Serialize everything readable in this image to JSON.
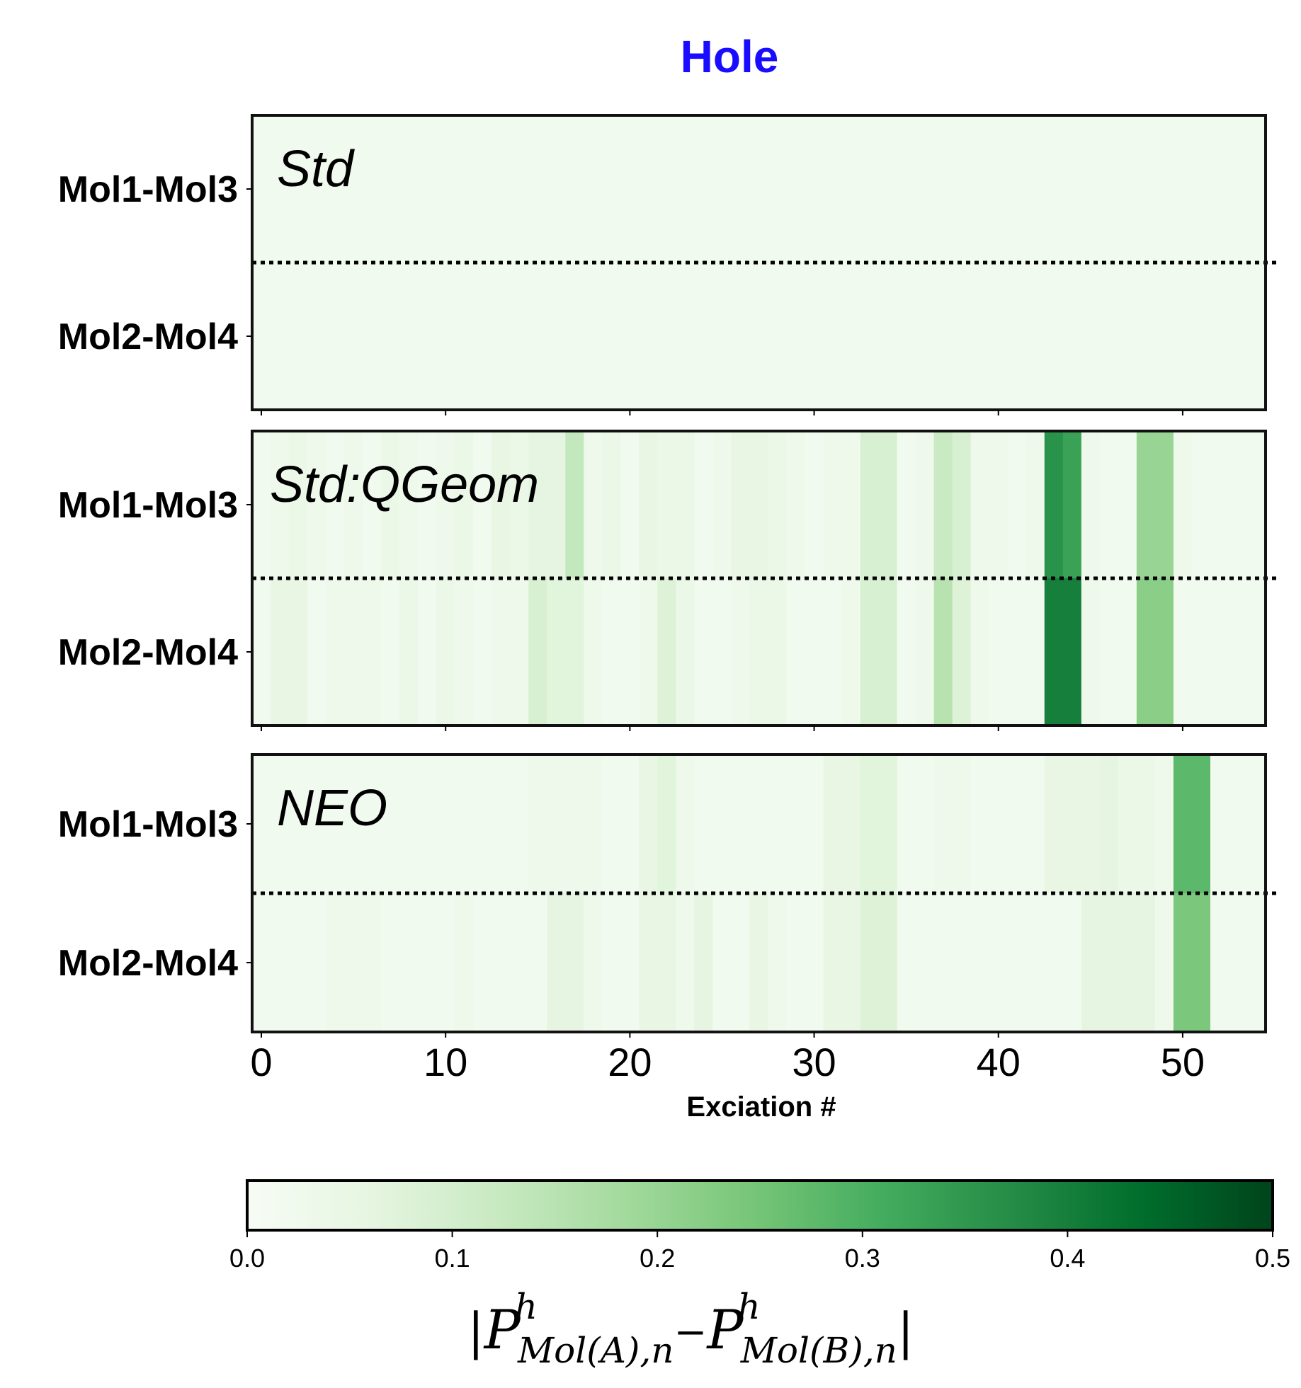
{
  "chart_data": {
    "type": "heatmap",
    "title": "Hole",
    "title_color": "#1a0dff",
    "xlabel": "Exciation #",
    "x_ticks": [
      0,
      10,
      20,
      30,
      40,
      50
    ],
    "x_range": [
      -0.5,
      54.5
    ],
    "colormap": "Greens",
    "colorbar": {
      "range": [
        0.0,
        0.5
      ],
      "ticks": [
        "0.0",
        "0.1",
        "0.2",
        "0.3",
        "0.4",
        "0.5"
      ],
      "label_main": "|P",
      "label_parts": {
        "sym1": "P",
        "sup1": "h",
        "sub1": "Mol(A),n",
        "minus": "−",
        "sym2": "P",
        "sup2": "h",
        "sub2": "Mol(B),n",
        "open": "|",
        "close": "|"
      }
    },
    "rows": [
      "Mol1-Mol3",
      "Mol2-Mol4"
    ],
    "panels": [
      {
        "label": "Std",
        "values": [
          [
            0.02,
            0.02,
            0.02,
            0.02,
            0.02,
            0.02,
            0.02,
            0.02,
            0.02,
            0.02,
            0.02,
            0.02,
            0.02,
            0.02,
            0.02,
            0.02,
            0.02,
            0.02,
            0.02,
            0.02,
            0.02,
            0.02,
            0.02,
            0.02,
            0.02,
            0.02,
            0.02,
            0.02,
            0.02,
            0.02,
            0.02,
            0.02,
            0.02,
            0.02,
            0.02,
            0.02,
            0.02,
            0.02,
            0.02,
            0.02,
            0.02,
            0.02,
            0.02,
            0.02,
            0.02,
            0.02,
            0.02,
            0.02,
            0.02,
            0.02,
            0.02,
            0.02,
            0.02,
            0.02,
            0.02
          ],
          [
            0.02,
            0.02,
            0.02,
            0.02,
            0.02,
            0.02,
            0.02,
            0.02,
            0.02,
            0.02,
            0.02,
            0.02,
            0.02,
            0.02,
            0.02,
            0.02,
            0.02,
            0.02,
            0.02,
            0.02,
            0.02,
            0.02,
            0.02,
            0.02,
            0.02,
            0.02,
            0.02,
            0.02,
            0.02,
            0.02,
            0.02,
            0.02,
            0.02,
            0.02,
            0.02,
            0.02,
            0.02,
            0.02,
            0.02,
            0.02,
            0.02,
            0.02,
            0.02,
            0.02,
            0.02,
            0.02,
            0.02,
            0.02,
            0.02,
            0.02,
            0.02,
            0.02,
            0.02,
            0.02,
            0.02
          ]
        ]
      },
      {
        "label": "Std:QGeom",
        "values": [
          [
            0.02,
            0.03,
            0.04,
            0.03,
            0.02,
            0.03,
            0.02,
            0.04,
            0.03,
            0.02,
            0.03,
            0.04,
            0.02,
            0.05,
            0.04,
            0.06,
            0.06,
            0.13,
            0.03,
            0.04,
            0.02,
            0.05,
            0.04,
            0.04,
            0.02,
            0.03,
            0.05,
            0.05,
            0.04,
            0.03,
            0.02,
            0.03,
            0.03,
            0.09,
            0.09,
            0.02,
            0.03,
            0.12,
            0.09,
            0.03,
            0.03,
            0.02,
            0.03,
            0.36,
            0.33,
            0.03,
            0.02,
            0.02,
            0.2,
            0.2,
            0.03,
            0.02,
            0.02,
            0.02,
            0.02
          ],
          [
            0.02,
            0.05,
            0.05,
            0.02,
            0.03,
            0.03,
            0.03,
            0.02,
            0.04,
            0.02,
            0.04,
            0.03,
            0.02,
            0.03,
            0.03,
            0.09,
            0.07,
            0.07,
            0.03,
            0.02,
            0.02,
            0.03,
            0.08,
            0.04,
            0.02,
            0.02,
            0.03,
            0.04,
            0.04,
            0.02,
            0.02,
            0.02,
            0.03,
            0.09,
            0.09,
            0.02,
            0.03,
            0.15,
            0.08,
            0.03,
            0.02,
            0.02,
            0.02,
            0.4,
            0.4,
            0.03,
            0.02,
            0.02,
            0.22,
            0.22,
            0.02,
            0.02,
            0.02,
            0.02,
            0.02
          ]
        ]
      },
      {
        "label": "NEO",
        "values": [
          [
            0.02,
            0.02,
            0.02,
            0.02,
            0.02,
            0.02,
            0.02,
            0.02,
            0.02,
            0.02,
            0.02,
            0.02,
            0.02,
            0.02,
            0.02,
            0.03,
            0.03,
            0.03,
            0.03,
            0.02,
            0.02,
            0.05,
            0.07,
            0.03,
            0.02,
            0.02,
            0.02,
            0.02,
            0.02,
            0.02,
            0.02,
            0.05,
            0.05,
            0.07,
            0.07,
            0.02,
            0.02,
            0.03,
            0.03,
            0.02,
            0.02,
            0.02,
            0.02,
            0.05,
            0.05,
            0.05,
            0.06,
            0.04,
            0.04,
            0.03,
            0.28,
            0.28,
            0.02,
            0.02,
            0.02
          ],
          [
            0.02,
            0.02,
            0.02,
            0.02,
            0.03,
            0.03,
            0.03,
            0.02,
            0.02,
            0.02,
            0.02,
            0.03,
            0.02,
            0.02,
            0.02,
            0.02,
            0.06,
            0.06,
            0.03,
            0.02,
            0.02,
            0.05,
            0.05,
            0.03,
            0.06,
            0.02,
            0.02,
            0.05,
            0.03,
            0.02,
            0.02,
            0.05,
            0.05,
            0.08,
            0.08,
            0.02,
            0.02,
            0.02,
            0.02,
            0.02,
            0.02,
            0.02,
            0.02,
            0.02,
            0.02,
            0.06,
            0.06,
            0.06,
            0.06,
            0.03,
            0.24,
            0.24,
            0.02,
            0.02,
            0.02
          ]
        ]
      }
    ]
  }
}
